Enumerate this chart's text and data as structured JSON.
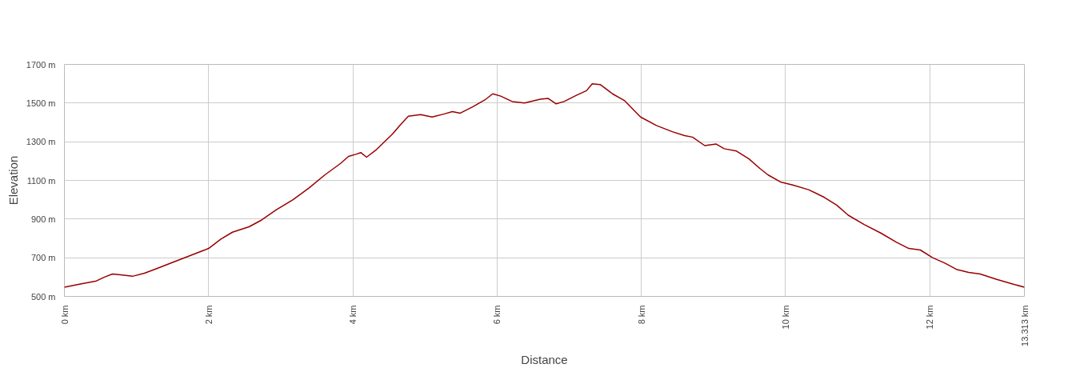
{
  "chart_data": {
    "type": "line",
    "xlabel": "Distance",
    "ylabel": "Elevation",
    "x": [
      0,
      0.222,
      0.444,
      0.555,
      0.666,
      0.777,
      0.944,
      1.11,
      1.28,
      1.5,
      1.78,
      2.0,
      2.17,
      2.33,
      2.56,
      2.72,
      2.94,
      3.17,
      3.39,
      3.61,
      3.83,
      3.94,
      4.05,
      4.11,
      4.19,
      4.33,
      4.55,
      4.66,
      4.77,
      4.94,
      5.1,
      5.27,
      5.38,
      5.49,
      5.66,
      5.83,
      5.94,
      6.05,
      6.21,
      6.38,
      6.6,
      6.71,
      6.82,
      6.93,
      7.1,
      7.24,
      7.32,
      7.43,
      7.6,
      7.77,
      7.99,
      8.21,
      8.43,
      8.6,
      8.71,
      8.88,
      9.04,
      9.15,
      9.32,
      9.49,
      9.65,
      9.76,
      9.93,
      10.1,
      10.32,
      10.54,
      10.71,
      10.87,
      11.09,
      11.32,
      11.54,
      11.71,
      11.87,
      12.04,
      12.21,
      12.37,
      12.54,
      12.7,
      12.93,
      13.15,
      13.313
    ],
    "series": [
      {
        "color": "#990000",
        "values": [
          548,
          564,
          580,
          600,
          616,
          612,
          604,
          620,
          644,
          676,
          716,
          748,
          796,
          832,
          860,
          892,
          948,
          1000,
          1060,
          1128,
          1188,
          1224,
          1236,
          1244,
          1220,
          1260,
          1340,
          1388,
          1432,
          1440,
          1428,
          1444,
          1456,
          1448,
          1480,
          1516,
          1548,
          1536,
          1508,
          1500,
          1520,
          1524,
          1496,
          1508,
          1540,
          1564,
          1600,
          1596,
          1548,
          1512,
          1428,
          1384,
          1352,
          1332,
          1324,
          1280,
          1288,
          1264,
          1252,
          1212,
          1160,
          1128,
          1092,
          1076,
          1052,
          1012,
          972,
          920,
          872,
          828,
          780,
          748,
          740,
          700,
          672,
          640,
          624,
          616,
          588,
          564,
          548
        ]
      }
    ],
    "xlim": [
      0,
      13.313
    ],
    "ylim": [
      500,
      1700
    ],
    "xticks": [
      {
        "value": 0,
        "label": "0 km"
      },
      {
        "value": 2,
        "label": "2 km"
      },
      {
        "value": 4,
        "label": "4 km"
      },
      {
        "value": 6,
        "label": "6 km"
      },
      {
        "value": 8,
        "label": "8 km"
      },
      {
        "value": 10,
        "label": "10 km"
      },
      {
        "value": 12,
        "label": "12 km"
      },
      {
        "value": 13.313,
        "label": "13.313 km"
      }
    ],
    "yticks": [
      {
        "value": 500,
        "label": "500 m"
      },
      {
        "value": 700,
        "label": "700 m"
      },
      {
        "value": 900,
        "label": "900 m"
      },
      {
        "value": 1100,
        "label": "1100 m"
      },
      {
        "value": 1300,
        "label": "1300 m"
      },
      {
        "value": 1500,
        "label": "1500 m"
      },
      {
        "value": 1700,
        "label": "1700 m"
      }
    ],
    "grid": true,
    "line_style": "solid",
    "marker": "none"
  }
}
